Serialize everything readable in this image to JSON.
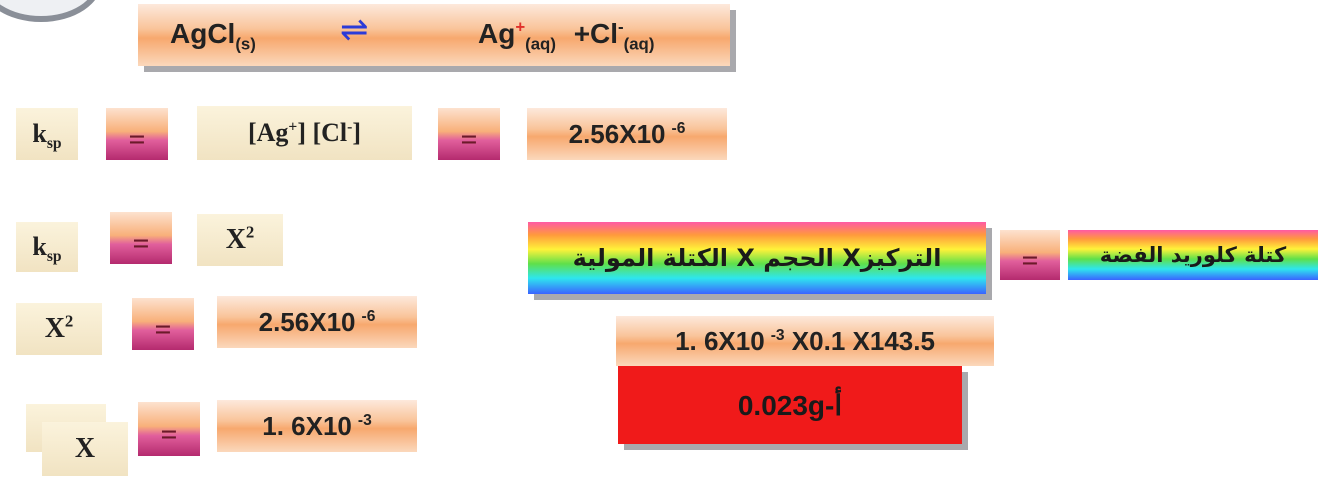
{
  "equation": {
    "reactant_main": "AgCl",
    "reactant_sub": "(s)",
    "arrow": "⇌",
    "product1_main": "Ag",
    "product1_sup": "+",
    "product1_sub": "(aq)",
    "product2_main": "+Cl",
    "product2_sup": "-",
    "product2_sub": "(aq)"
  },
  "row1": {
    "k": "k",
    "k_sub": "sp",
    "eq1": "=",
    "expr_p1": "[Ag",
    "expr_sup1": "+",
    "expr_p2": "] [Cl",
    "expr_sup2": "-",
    "expr_p3": "]",
    "eq2": "=",
    "value": "2.56X10",
    "value_exp": "-6"
  },
  "row2": {
    "k": "k",
    "k_sub": "sp",
    "eq": "=",
    "rhs": "X",
    "rhs_sup": "2"
  },
  "row3": {
    "lhs": "X",
    "lhs_sup": "2",
    "eq": "=",
    "value": "2.56X10",
    "value_exp": "-6"
  },
  "row4": {
    "lhs": "X",
    "eq": "=",
    "value": "1. 6X10",
    "value_exp": "-3"
  },
  "mass": {
    "label": "كتلة كلوريد الفضة",
    "eq": "=",
    "formula": "التركيزX الحجم X الكتلة المولية",
    "calc_value": "1. 6X10",
    "calc_exp": "-3",
    "calc_rest": " X0.1 X143.5",
    "answer": "0.023g-أ"
  }
}
